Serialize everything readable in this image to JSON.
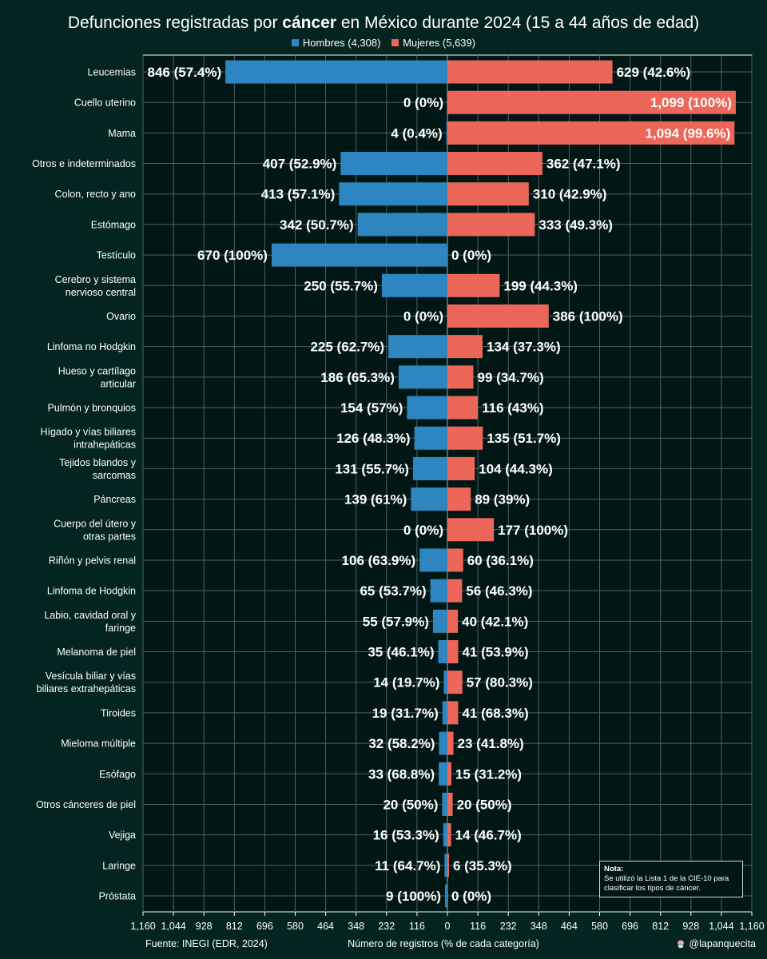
{
  "title": {
    "prefix": "Defunciones registradas por ",
    "highlight": "cáncer",
    "suffix": " en México durante 2024 (15 a 44 años de edad)"
  },
  "legend": {
    "male": "Hombres (4,308)",
    "female": "Mujeres (5,639)"
  },
  "colors": {
    "background": "#032421",
    "plot_background": "#011715",
    "male": "#2e86c1",
    "female": "#ec6759",
    "grid": "#4c6460"
  },
  "note": {
    "title": "Nota:",
    "text": "Se utilizó la Lista 1 de la CIE-10 para clasificar los tipos de cáncer."
  },
  "footer": {
    "source": "Fuente: INEGI (EDR, 2024)",
    "xlabel": "Número de registros (% de cada categoría)",
    "author": "@lapanquecita",
    "author_icon": "cupcake-icon"
  },
  "chart_data": {
    "type": "bar",
    "orientation": "horizontal-diverging",
    "title": "Defunciones registradas por cáncer en México durante 2024 (15 a 44 años de edad)",
    "xlabel": "Número de registros (% de cada categoría)",
    "xlim": [
      -1160,
      1160
    ],
    "xticks": [
      -1160,
      -1044,
      -928,
      -812,
      -696,
      -580,
      -464,
      -348,
      -232,
      -116,
      0,
      116,
      232,
      348,
      464,
      580,
      696,
      812,
      928,
      1044,
      1160
    ],
    "xtick_labels": [
      "1,160",
      "1,044",
      "928",
      "812",
      "696",
      "580",
      "464",
      "348",
      "232",
      "116",
      "0",
      "116",
      "232",
      "348",
      "464",
      "580",
      "696",
      "812",
      "928",
      "1,044",
      "1,160"
    ],
    "categories": [
      [
        "Leucemias"
      ],
      [
        "Cuello uterino"
      ],
      [
        "Mama"
      ],
      [
        "Otros e indeterminados"
      ],
      [
        "Colon, recto y ano"
      ],
      [
        "Estómago"
      ],
      [
        "Testículo"
      ],
      [
        "Cerebro y sistema",
        "nervioso central"
      ],
      [
        "Ovario"
      ],
      [
        "Linfoma no Hodgkin"
      ],
      [
        "Hueso y cartílago",
        "articular"
      ],
      [
        "Pulmón y bronquios"
      ],
      [
        "Hígado y vías biliares",
        "intrahepáticas"
      ],
      [
        "Tejidos blandos y",
        "sarcomas"
      ],
      [
        "Páncreas"
      ],
      [
        "Cuerpo del útero y",
        "otras partes"
      ],
      [
        "Riñón y pelvis renal"
      ],
      [
        "Linfoma de Hodgkin"
      ],
      [
        "Labio, cavidad oral y",
        "faringe"
      ],
      [
        "Melanoma de piel"
      ],
      [
        "Vesícula biliar y vías",
        "biliares extrahepáticas"
      ],
      [
        "Tiroides"
      ],
      [
        "Mieloma múltiple"
      ],
      [
        "Esófago"
      ],
      [
        "Otros cánceres de piel"
      ],
      [
        "Vejiga"
      ],
      [
        "Laringe"
      ],
      [
        "Próstata"
      ]
    ],
    "series": [
      {
        "name": "Hombres (4,308)",
        "color": "#2e86c1",
        "values": [
          846,
          0,
          4,
          407,
          413,
          342,
          670,
          250,
          0,
          225,
          186,
          154,
          126,
          131,
          139,
          0,
          106,
          65,
          55,
          35,
          14,
          19,
          32,
          33,
          20,
          16,
          11,
          9
        ],
        "labels": [
          "846 (57.4%)",
          "0 (0%)",
          "4 (0.4%)",
          "407 (52.9%)",
          "413 (57.1%)",
          "342 (50.7%)",
          "670 (100%)",
          "250 (55.7%)",
          "0 (0%)",
          "225 (62.7%)",
          "186 (65.3%)",
          "154 (57%)",
          "126 (48.3%)",
          "131 (55.7%)",
          "139 (61%)",
          "0 (0%)",
          "106 (63.9%)",
          "65 (53.7%)",
          "55 (57.9%)",
          "35 (46.1%)",
          "14 (19.7%)",
          "19 (31.7%)",
          "32 (58.2%)",
          "33 (68.8%)",
          "20 (50%)",
          "16 (53.3%)",
          "11 (64.7%)",
          "9 (100%)"
        ]
      },
      {
        "name": "Mujeres (5,639)",
        "color": "#ec6759",
        "values": [
          629,
          1099,
          1094,
          362,
          310,
          333,
          0,
          199,
          386,
          134,
          99,
          116,
          135,
          104,
          89,
          177,
          60,
          56,
          40,
          41,
          57,
          41,
          23,
          15,
          20,
          14,
          6,
          0
        ],
        "labels": [
          "629 (42.6%)",
          "1,099 (100%)",
          "1,094 (99.6%)",
          "362 (47.1%)",
          "310 (42.9%)",
          "333 (49.3%)",
          "0 (0%)",
          "199 (44.3%)",
          "386 (100%)",
          "134 (37.3%)",
          "99 (34.7%)",
          "116 (43%)",
          "135 (51.7%)",
          "104 (44.3%)",
          "89 (39%)",
          "177 (100%)",
          "60 (36.1%)",
          "56 (46.3%)",
          "40 (42.1%)",
          "41 (53.9%)",
          "57 (80.3%)",
          "41 (68.3%)",
          "23 (41.8%)",
          "15 (31.2%)",
          "20 (50%)",
          "14 (46.7%)",
          "6 (35.3%)",
          "0 (0%)"
        ],
        "inside_labels": [
          1,
          2
        ]
      }
    ]
  }
}
